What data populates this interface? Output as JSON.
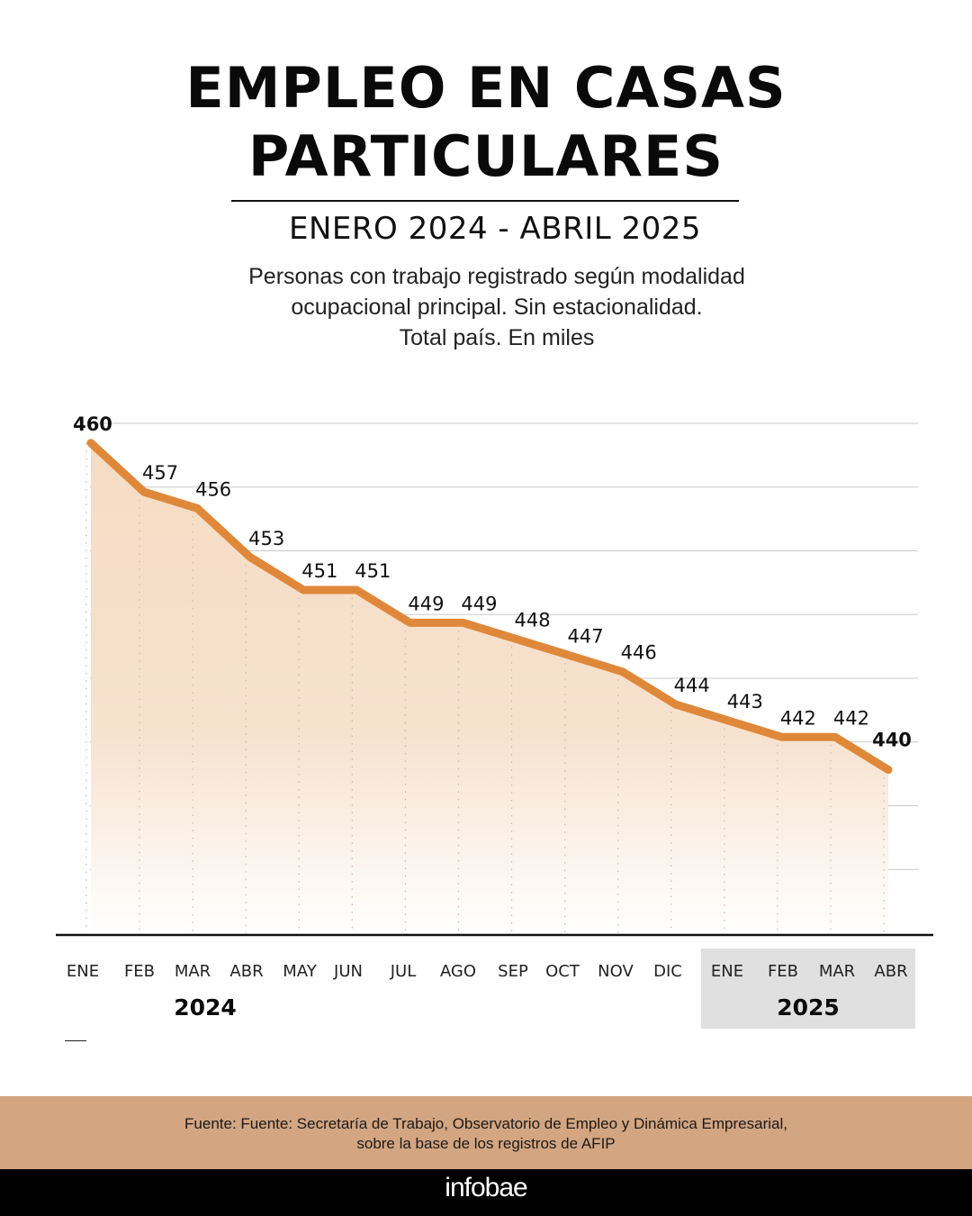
{
  "header": {
    "title_line1": "EMPLEO EN CASAS",
    "title_line2": "PARTICULARES",
    "subtitle": "ENERO 2024 - ABRIL 2025",
    "description_lines": [
      "Personas con trabajo registrado según modalidad",
      "ocupacional principal. Sin estacionalidad.",
      "Total país.  En miles"
    ]
  },
  "colors": {
    "line": "#e0883a",
    "area_top": "#f5dcc4",
    "area_bottom": "#ffffff",
    "footer_bg": "#d3a580",
    "year_highlight": "#e0e0e0"
  },
  "chart_data": {
    "type": "area",
    "title": "EMPLEO EN CASAS PARTICULARES",
    "subtitle": "ENERO 2024 - ABRIL 2025",
    "xlabel": "",
    "ylabel": "En miles",
    "categories": [
      "ENE",
      "FEB",
      "MAR",
      "ABR",
      "MAY",
      "JUN",
      "JUL",
      "AGO",
      "SEP",
      "OCT",
      "NOV",
      "DIC",
      "ENE",
      "FEB",
      "MAR",
      "ABR"
    ],
    "years": [
      {
        "label": "2024",
        "start_index": 0,
        "end_index": 11
      },
      {
        "label": "2025",
        "start_index": 12,
        "end_index": 15
      }
    ],
    "series": [
      {
        "name": "Empleo en casas particulares",
        "values": [
          460,
          457,
          456,
          453,
          451,
          451,
          449,
          449,
          448,
          447,
          446,
          444,
          443,
          442,
          442,
          440
        ]
      }
    ],
    "value_labels": [
      "460",
      "457",
      "456",
      "453",
      "451",
      "451",
      "449",
      "449",
      "448",
      "447",
      "446",
      "444",
      "443",
      "442",
      "442",
      "440"
    ],
    "bold_labels": [
      0,
      15
    ],
    "ylim": [
      430,
      461.2
    ],
    "grid": true,
    "gridline_count": 8,
    "legend": "none"
  },
  "footer": {
    "source_line1": "Fuente: Fuente: Secretaría de Trabajo, Observatorio de Empleo y Dinámica Empresarial,",
    "source_line2": "sobre la base de los registros de AFIP",
    "brand": "infobae"
  }
}
